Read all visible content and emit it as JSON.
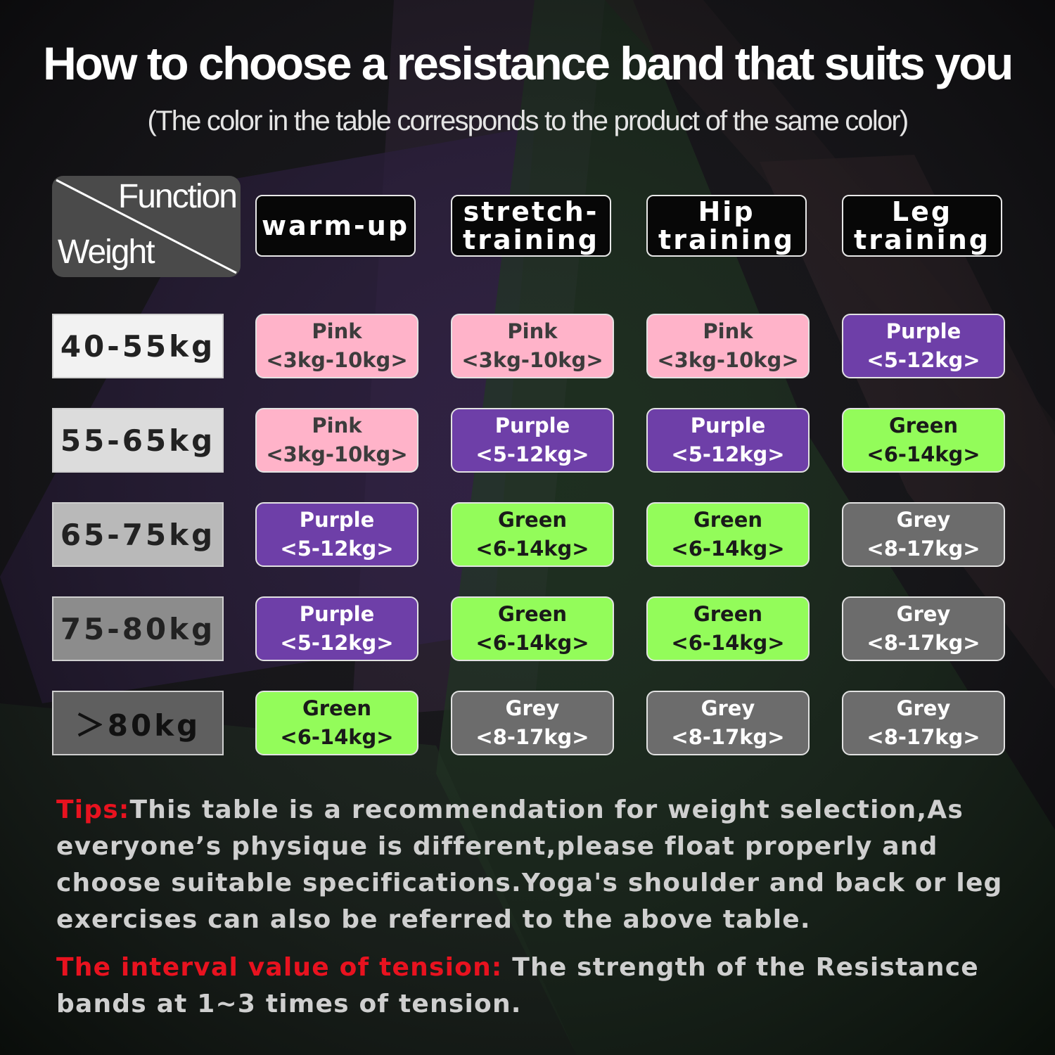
{
  "title": "How to choose a resistance band that suits you",
  "subtitle": "(The color in the table corresponds to the product of the same color)",
  "table": {
    "corner": {
      "function_label": "Function",
      "weight_label": "Weight"
    },
    "columns": [
      {
        "line1": "warm-up",
        "line2": ""
      },
      {
        "line1": "stretch-",
        "line2": "training"
      },
      {
        "line1": "Hip",
        "line2": "training"
      },
      {
        "line1": "Leg",
        "line2": "training"
      }
    ],
    "rows": [
      {
        "weight": "40-55kg",
        "cells": [
          {
            "color": "Pink",
            "range": "<3kg-10kg>"
          },
          {
            "color": "Pink",
            "range": "<3kg-10kg>"
          },
          {
            "color": "Pink",
            "range": "<3kg-10kg>"
          },
          {
            "color": "Purple",
            "range": "<5-12kg>"
          }
        ]
      },
      {
        "weight": "55-65kg",
        "cells": [
          {
            "color": "Pink",
            "range": "<3kg-10kg>"
          },
          {
            "color": "Purple",
            "range": "<5-12kg>"
          },
          {
            "color": "Purple",
            "range": "<5-12kg>"
          },
          {
            "color": "Green",
            "range": "<6-14kg>"
          }
        ]
      },
      {
        "weight": "65-75kg",
        "cells": [
          {
            "color": "Purple",
            "range": "<5-12kg>"
          },
          {
            "color": "Green",
            "range": "<6-14kg>"
          },
          {
            "color": "Green",
            "range": "<6-14kg>"
          },
          {
            "color": "Grey",
            "range": "<8-17kg>"
          }
        ]
      },
      {
        "weight": "75-80kg",
        "cells": [
          {
            "color": "Purple",
            "range": "<5-12kg>"
          },
          {
            "color": "Green",
            "range": "<6-14kg>"
          },
          {
            "color": "Green",
            "range": "<6-14kg>"
          },
          {
            "color": "Grey",
            "range": "<8-17kg>"
          }
        ]
      },
      {
        "weight": "＞80kg",
        "cells": [
          {
            "color": "Green",
            "range": "<6-14kg>"
          },
          {
            "color": "Grey",
            "range": "<8-17kg>"
          },
          {
            "color": "Grey",
            "range": "<8-17kg>"
          },
          {
            "color": "Grey",
            "range": "<8-17kg>"
          }
        ]
      }
    ]
  },
  "tips": {
    "label": "Tips:",
    "text": "This table is a recommendation for weight selection,As everyone’s physique is different,please float properly and choose suitable specifications.Yoga's shoulder and back or leg exercises can also be referred to the above table."
  },
  "tension": {
    "label": "The interval value of tension:",
    "text": " The strength of the Resistance bands at 1~3 times of tension."
  },
  "colors": {
    "pink_bg": "#ffb3c9",
    "pink_text": "#3c3c3c",
    "purple_bg": "#6e3fa8",
    "purple_text": "#ffffff",
    "green_bg": "#93fc5a",
    "green_text": "#1a1a1a",
    "grey_bg": "#6c6c6c",
    "grey_text": "#ffffff",
    "accent_red": "#e8121f"
  }
}
